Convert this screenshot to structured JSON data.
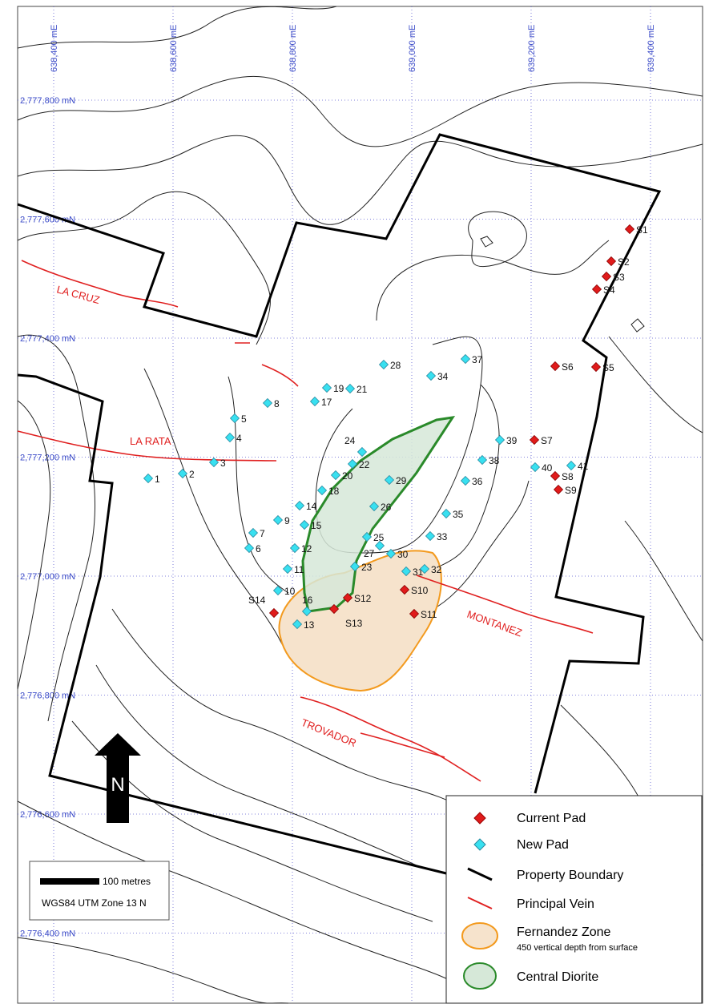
{
  "grid": {
    "eastings": [
      "638,400 mE",
      "638,600 mE",
      "638,800 mE",
      "639,000 mE",
      "639,200 mE",
      "639,400 mE"
    ],
    "northings": [
      "2,777,800 mN",
      "2,777,600 mN",
      "2,777,400 mN",
      "2,777,200 mN",
      "2,777,000 mN",
      "2,776,800 mN",
      "2,776,600 mN",
      "2,776,400 mN"
    ]
  },
  "veins": [
    "LA CRUZ",
    "LA RATA",
    "MONTANEZ",
    "TROVADOR"
  ],
  "current_pads": [
    "S1",
    "S2",
    "S3",
    "S4",
    "S5",
    "S6",
    "S7",
    "S8",
    "S9",
    "S10",
    "S11",
    "S12",
    "S13",
    "S14"
  ],
  "new_pads": [
    "1",
    "2",
    "3",
    "4",
    "5",
    "6",
    "7",
    "8",
    "9",
    "10",
    "11",
    "12",
    "13",
    "14",
    "15",
    "16",
    "17",
    "18",
    "19",
    "20",
    "21",
    "22",
    "23",
    "24",
    "25",
    "26",
    "27",
    "28",
    "29",
    "30",
    "31",
    "32",
    "33",
    "34",
    "35",
    "36",
    "37",
    "38",
    "39",
    "40",
    "41"
  ],
  "north_arrow": "N",
  "scale_bar": {
    "label": "100 metres",
    "datum": "WGS84 UTM Zone 13 N"
  },
  "legend": {
    "items": [
      "Current Pad",
      "New Pad",
      "Property Boundary",
      "Principal Vein",
      "Fernandez Zone",
      "Central Diorite"
    ],
    "note": "450 vertical depth from surface"
  }
}
